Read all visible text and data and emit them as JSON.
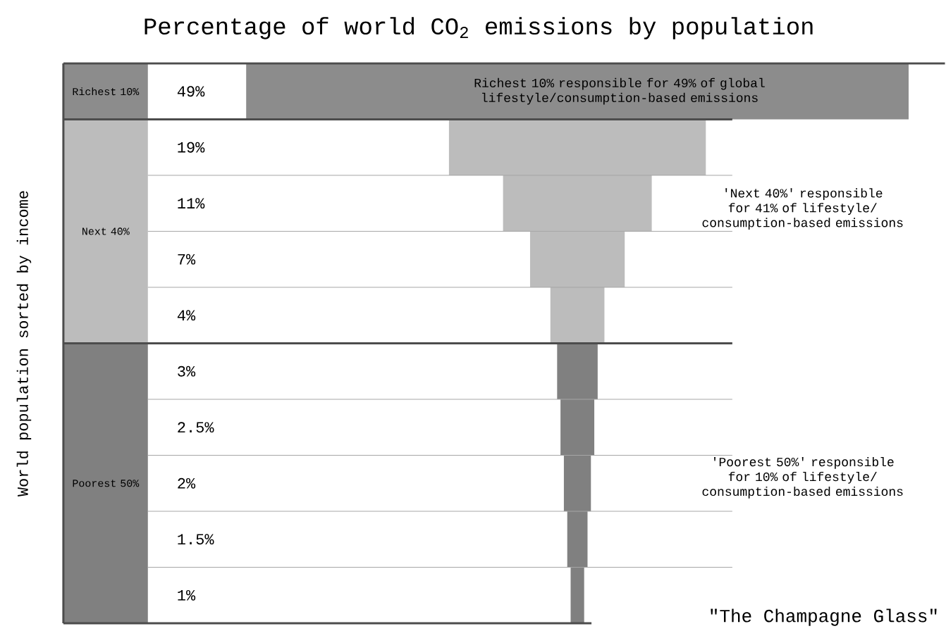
{
  "chart_data": {
    "type": "other",
    "title": "Percentage of world CO$_{2}$ emissions by population",
    "ylabel": "World population sorted by income",
    "categories": [
      null,
      null,
      null,
      null,
      null,
      null,
      null,
      null,
      null,
      null
    ],
    "values": [
      49,
      19,
      11,
      7,
      4,
      3,
      2.5,
      2,
      1.5,
      1
    ],
    "value_labels": [
      "49%",
      "19%",
      "11%",
      "7%",
      "4%",
      "3%",
      "2.5%",
      "2%",
      "1.5%",
      "1%"
    ],
    "colors": [
      "#8c8c8c",
      "#bcbcbc",
      "#bcbcbc",
      "#bcbcbc",
      "#bcbcbc",
      "#808080",
      "#808080",
      "#808080",
      "#808080",
      "#808080"
    ],
    "annotations": [
      "Richest 10%",
      "Next 40%",
      "Poorest 50%",
      "Richest 10% responsible for 49% of global lifestyle/consumption-based emissions",
      "'Next 40%' responsible for 41% of lifestyle/ consumption-based emissions",
      "'Poorest 50%' responsible for 10% of lifestyle/ consumption-based emissions",
      "\"The Champagne Glass\""
    ]
  }
}
